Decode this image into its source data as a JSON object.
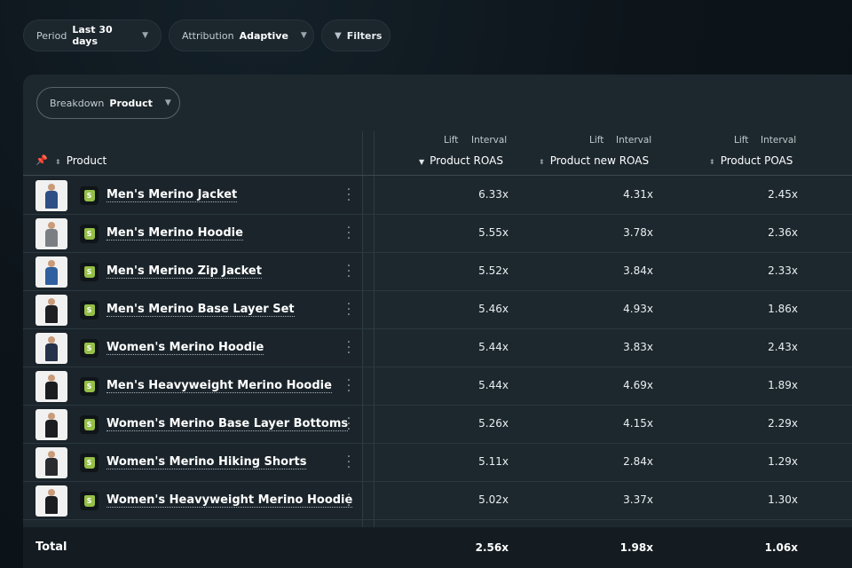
{
  "filters": {
    "period": {
      "label": "Period",
      "value": "Last 30 days"
    },
    "attribution": {
      "label": "Attribution",
      "value": "Adaptive"
    },
    "filters_label": "Filters"
  },
  "breakdown": {
    "label": "Breakdown",
    "value": "Product"
  },
  "columns": {
    "product": "Product",
    "roas": {
      "lift": "Lift",
      "interval": "Interval",
      "title": "Product ROAS"
    },
    "new_roas": {
      "lift": "Lift",
      "interval": "Interval",
      "title": "Product new ROAS"
    },
    "poas": {
      "lift": "Lift",
      "interval": "Interval",
      "title": "Product POAS"
    }
  },
  "rows": [
    {
      "name": "Men's Merino Jacket",
      "roas": "6.33x",
      "new_roas": "4.31x",
      "poas": "2.45x",
      "color": "#2d4f86"
    },
    {
      "name": "Men's Merino Hoodie",
      "roas": "5.55x",
      "new_roas": "3.78x",
      "poas": "2.36x",
      "color": "#7b7f84"
    },
    {
      "name": "Men's Merino Zip Jacket",
      "roas": "5.52x",
      "new_roas": "3.84x",
      "poas": "2.33x",
      "color": "#2f5f9e"
    },
    {
      "name": "Men's Merino Base Layer Set",
      "roas": "5.46x",
      "new_roas": "4.93x",
      "poas": "1.86x",
      "color": "#1d1f22"
    },
    {
      "name": "Women's Merino Hoodie",
      "roas": "5.44x",
      "new_roas": "3.83x",
      "poas": "2.43x",
      "color": "#26314a"
    },
    {
      "name": "Men's Heavyweight Merino Hoodie",
      "roas": "5.44x",
      "new_roas": "4.69x",
      "poas": "1.89x",
      "color": "#1a1c1f"
    },
    {
      "name": "Women's Merino Base Layer Bottoms",
      "roas": "5.26x",
      "new_roas": "4.15x",
      "poas": "2.29x",
      "color": "#1c1d20"
    },
    {
      "name": "Women's Merino Hiking Shorts",
      "roas": "5.11x",
      "new_roas": "2.84x",
      "poas": "1.29x",
      "color": "#2a2b2e"
    },
    {
      "name": "Women's Heavyweight Merino Hoodie",
      "roas": "5.02x",
      "new_roas": "3.37x",
      "poas": "1.30x",
      "color": "#1b1c1f"
    }
  ],
  "total": {
    "label": "Total",
    "roas": "2.56x",
    "new_roas": "1.98x",
    "poas": "1.06x"
  }
}
